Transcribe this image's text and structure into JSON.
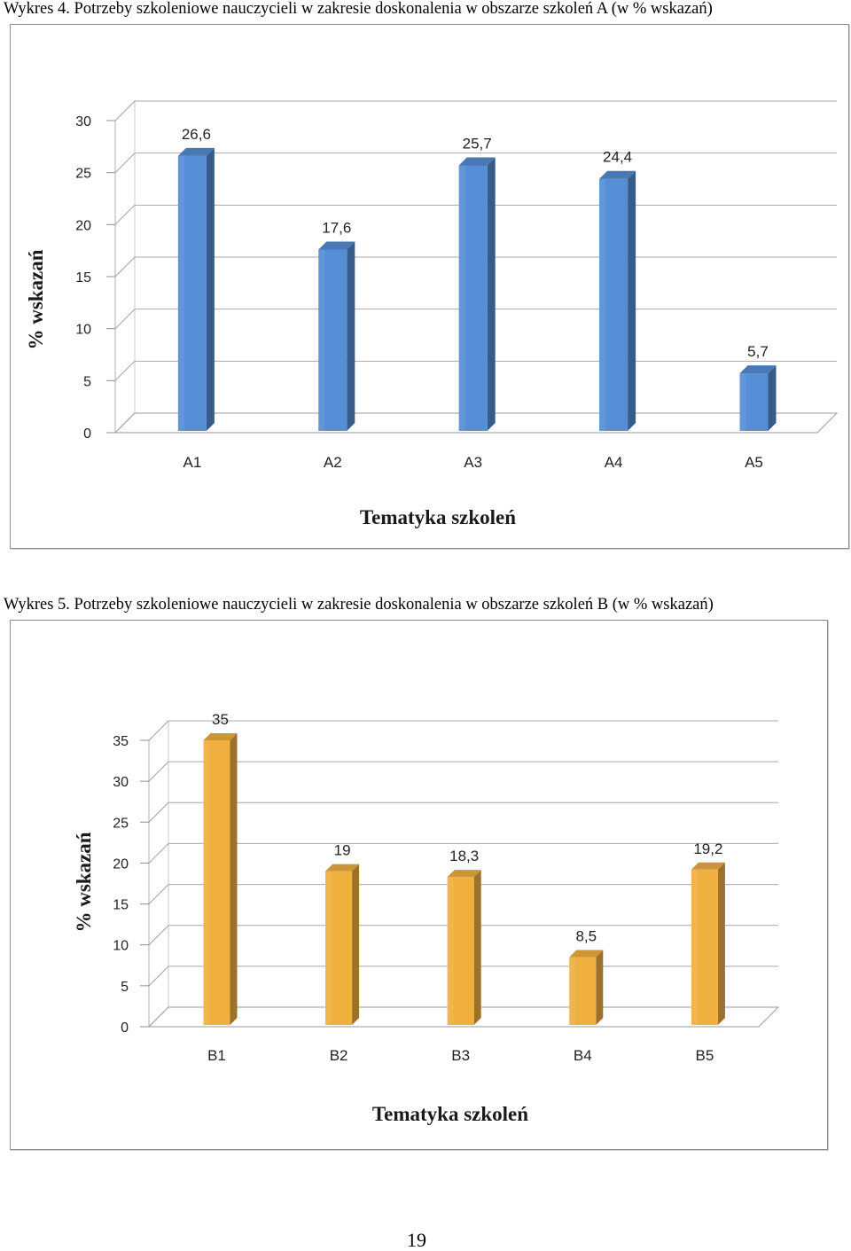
{
  "captions": {
    "chart1": "Wykres 4. Potrzeby szkoleniowe nauczycieli w zakresie doskonalenia w obszarze szkoleń A (w % wskazań)",
    "chart2": "Wykres 5. Potrzeby szkoleniowe nauczycieli w zakresie doskonalenia w obszarze szkoleń B (w % wskazań)"
  },
  "page_number": "19",
  "colors": {
    "series_a": "#558ED5",
    "series_b": "#F0B040"
  },
  "chart_data": [
    {
      "type": "bar",
      "style": "3d-column",
      "title": "",
      "xlabel": "Tematyka szkoleń",
      "ylabel": "% wskazań",
      "categories": [
        "A1",
        "A2",
        "A3",
        "A4",
        "A5"
      ],
      "values": [
        26.6,
        17.6,
        25.7,
        24.4,
        5.7
      ],
      "value_labels": [
        "26,6",
        "17,6",
        "25,7",
        "24,4",
        "5,7"
      ],
      "ylim": [
        0,
        30
      ],
      "yticks": [
        0,
        5,
        10,
        15,
        20,
        25,
        30
      ],
      "grid": true
    },
    {
      "type": "bar",
      "style": "3d-column",
      "title": "",
      "xlabel": "Tematyka szkoleń",
      "ylabel": "% wskazań",
      "categories": [
        "B1",
        "B2",
        "B3",
        "B4",
        "B5"
      ],
      "values": [
        35,
        19,
        18.3,
        8.5,
        19.2
      ],
      "value_labels": [
        "35",
        "19",
        "18,3",
        "8,5",
        "19,2"
      ],
      "ylim": [
        0,
        35
      ],
      "yticks": [
        0,
        5,
        10,
        15,
        20,
        25,
        30,
        35
      ],
      "grid": true
    }
  ]
}
